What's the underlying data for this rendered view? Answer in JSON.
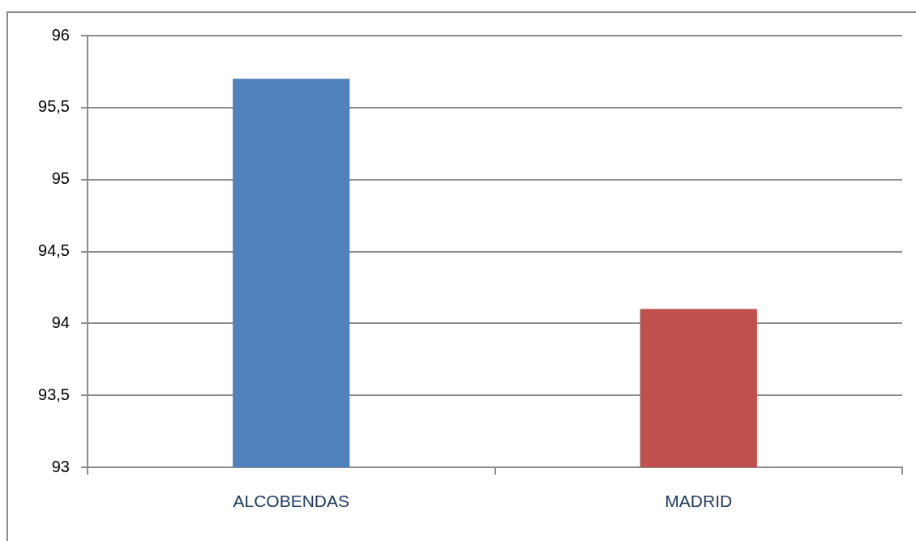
{
  "chart_data": {
    "type": "bar",
    "categories": [
      "ALCOBENDAS",
      "MADRID"
    ],
    "values": [
      95.7,
      94.1
    ],
    "colors": [
      "#4f81bd",
      "#c0504d"
    ],
    "ylim": [
      93,
      96
    ],
    "yticks": [
      93,
      {
        "value": 93.5,
        "label": "93,5"
      },
      94,
      {
        "value": 94.5,
        "label": "94,5"
      },
      95,
      {
        "value": 95.5,
        "label": "95,5"
      },
      96
    ],
    "grid": "y"
  }
}
